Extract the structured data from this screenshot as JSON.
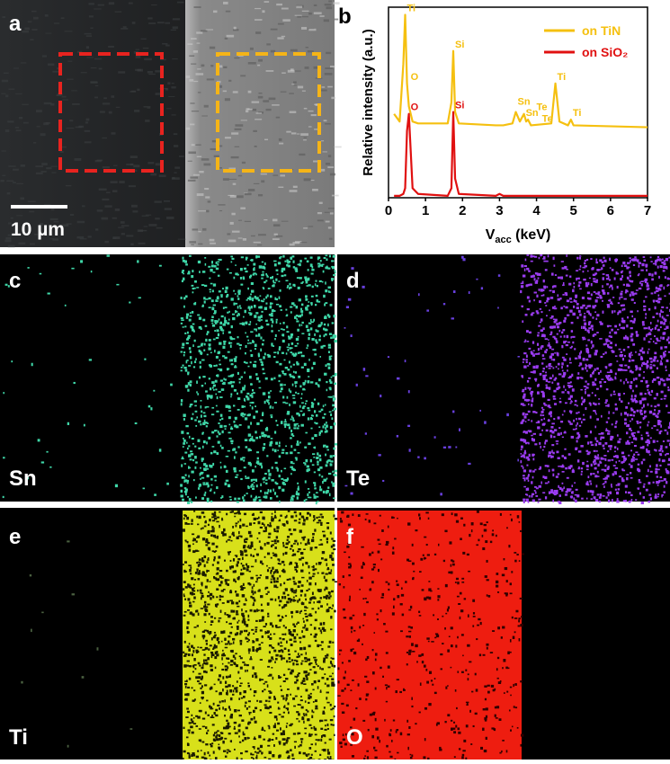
{
  "panels": [
    {
      "label": "a",
      "scale_bar": "10 µm"
    },
    {
      "label": "b"
    },
    {
      "label": "c",
      "element": "Sn"
    },
    {
      "label": "d",
      "element": "Te"
    },
    {
      "label": "e",
      "element": "Ti"
    },
    {
      "label": "f",
      "element": "O"
    }
  ],
  "chart_data": {
    "type": "line",
    "ylabel": "Relative intensity (a.u.)",
    "xlabel": [
      "V",
      "acc",
      " (keV)"
    ],
    "xlim": [
      0,
      7
    ],
    "xticks": [
      0,
      1,
      2,
      3,
      4,
      5,
      6,
      7
    ],
    "ylim": [
      0,
      100
    ],
    "legend": "upper right",
    "x": [
      0.15,
      0.3,
      0.4,
      0.45,
      0.5,
      0.55,
      0.65,
      0.8,
      1.6,
      1.7,
      1.75,
      1.8,
      1.9,
      2.9,
      3.0,
      3.1,
      3.35,
      3.44,
      3.55,
      3.66,
      3.72,
      3.77,
      3.85,
      4.4,
      4.51,
      4.62,
      4.85,
      4.93,
      5.0,
      7.0
    ],
    "series": [
      {
        "name": "on TiN",
        "color": "#f5c010",
        "values": [
          44,
          40,
          70,
          96,
          60,
          48,
          40,
          39,
          39,
          50,
          77,
          45,
          39,
          38,
          38,
          38,
          39,
          45,
          40,
          44,
          40,
          41,
          38,
          39,
          60,
          40,
          38,
          41,
          38,
          37
        ],
        "annotations": [
          {
            "text": "Ti",
            "x": 0.45,
            "y": 96
          },
          {
            "text": "O",
            "x": 0.55,
            "y": 60
          },
          {
            "text": "Si",
            "x": 1.75,
            "y": 77
          },
          {
            "text": "Sn",
            "x": 3.44,
            "y": 47
          },
          {
            "text": "Sn",
            "x": 3.66,
            "y": 41
          },
          {
            "text": "Te",
            "x": 3.95,
            "y": 44
          },
          {
            "text": "Te",
            "x": 4.1,
            "y": 38
          },
          {
            "text": "Ti",
            "x": 4.51,
            "y": 60
          },
          {
            "text": "Ti",
            "x": 4.93,
            "y": 41
          }
        ]
      },
      {
        "name": "on SiO₂",
        "color": "#e01010",
        "values": [
          1,
          1,
          2,
          5,
          35,
          44,
          5,
          2,
          1,
          5,
          45,
          10,
          2,
          1,
          2,
          1,
          1,
          1,
          1,
          1,
          1,
          1,
          1,
          1,
          1,
          1,
          1,
          1,
          1,
          1
        ],
        "annotations": [
          {
            "text": "O",
            "x": 0.55,
            "y": 44
          },
          {
            "text": "Si",
            "x": 1.75,
            "y": 45
          }
        ]
      }
    ]
  }
}
